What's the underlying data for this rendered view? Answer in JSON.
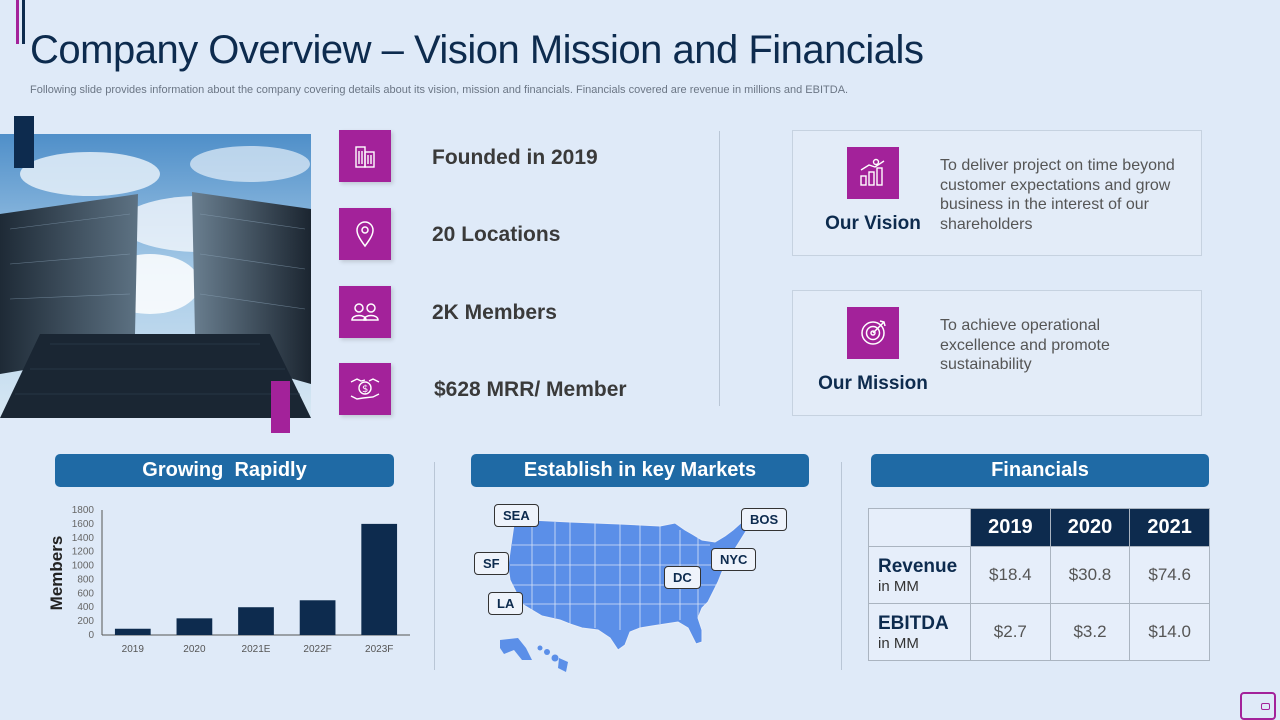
{
  "header": {
    "title": "Company Overview – Vision Mission and Financials",
    "subtitle": "Following slide provides information about the company covering details about its vision, mission and financials. Financials covered are revenue in millions and EBITDA."
  },
  "colors": {
    "accent": "#a3229a",
    "navy": "#0d2b4e",
    "header_blue": "#1f6aa5",
    "map_blue": "#5b8fe8",
    "background": "#dfeaf8"
  },
  "facts": [
    {
      "icon": "building-icon",
      "text": "Founded in 2019"
    },
    {
      "icon": "location-pin-icon",
      "text": "20 Locations"
    },
    {
      "icon": "people-icon",
      "text": "2K Members"
    },
    {
      "icon": "money-hand-icon",
      "text": "$628 MRR/ Member"
    }
  ],
  "vision": {
    "label": "Our Vision",
    "icon": "growth-chart-icon",
    "text": "To deliver project on time beyond customer expectations and grow business in the interest of our shareholders"
  },
  "mission": {
    "label": "Our Mission",
    "icon": "target-icon",
    "text": "To achieve operational excellence and promote sustainability"
  },
  "sections": {
    "growth": "Growing  Rapidly",
    "markets": "Establish in key Markets",
    "financials": "Financials"
  },
  "chart_data": {
    "type": "bar",
    "ylabel": "Members",
    "categories": [
      "2019",
      "2020",
      "2021E",
      "2022F",
      "2023F"
    ],
    "values": [
      90,
      240,
      400,
      500,
      1600
    ],
    "ylim": [
      0,
      1800
    ],
    "yticks": [
      "0",
      "200",
      "400",
      "600",
      "800",
      "1000",
      "1200",
      "1400",
      "1600",
      "1800"
    ],
    "color": "#0d2b4e"
  },
  "markets": [
    "SEA",
    "SF",
    "LA",
    "BOS",
    "NYC",
    "DC"
  ],
  "financials": {
    "years": [
      "2019",
      "2020",
      "2021"
    ],
    "rows": [
      {
        "label": "Revenue",
        "sub": "in MM",
        "values": [
          "$18.4",
          "$30.8",
          "$74.6"
        ]
      },
      {
        "label": "EBITDA",
        "sub": "in MM",
        "values": [
          "$2.7",
          "$3.2",
          "$14.0"
        ]
      }
    ]
  }
}
